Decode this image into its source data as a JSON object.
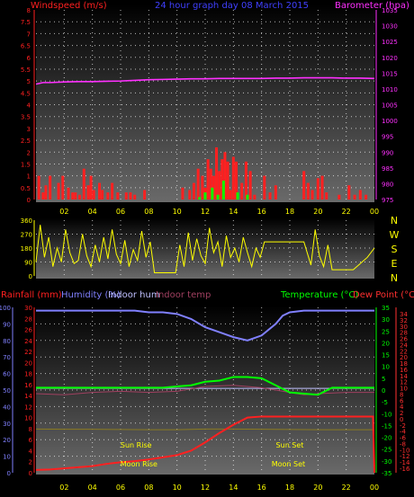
{
  "colors": {
    "wind": "#ff2020",
    "gust": "#00ff00",
    "barometer": "#ff30ff",
    "direction": "#ffff00",
    "rain": "#ff2020",
    "humidity": "#8080ff",
    "indoor_hum": "#c0c0ff",
    "indoor_temp": "#a04060",
    "temperature": "#00ff00",
    "dewpoint": "#ff3030",
    "title": "#4040ff",
    "axis_tick": "#ffff00",
    "sun": "#ffff00",
    "moon": "#ffff00",
    "grid": "#ffffff"
  },
  "chart_data": [
    {
      "type": "line",
      "title": "24 hour graph day  08 March 2015",
      "left_label": "Windspeed (m/s)",
      "right_label": "Barometer (hpa)",
      "y_left_ticks": [
        "0",
        "0.5",
        "1",
        "1.5",
        "2",
        "2.5",
        "3",
        "3.5",
        "4",
        "4.5",
        "5",
        "5.5",
        "6",
        "6.5",
        "7",
        "7.5",
        "8"
      ],
      "y_right_ticks": [
        "975",
        "980",
        "985",
        "990",
        "995",
        "1000",
        "1005",
        "1010",
        "1015",
        "1020",
        "1025",
        "1030",
        "1035"
      ],
      "ylim_left": [
        0,
        8
      ],
      "ylim_right": [
        975,
        1035
      ],
      "x_ticks": [
        "02",
        "04",
        "06",
        "08",
        "10",
        "12",
        "14",
        "16",
        "18",
        "20",
        "22",
        "00"
      ],
      "xlim": [
        0,
        24
      ],
      "grid": true,
      "series": [
        {
          "key": "barometer",
          "axis": "right",
          "x": [
            0,
            0.5,
            1,
            2,
            3,
            4,
            5,
            6,
            7,
            8,
            9,
            10,
            11,
            12,
            13,
            14,
            15,
            16,
            17,
            18,
            19,
            20,
            21,
            22,
            23,
            24
          ],
          "values": [
            1011.5,
            1012.0,
            1012.0,
            1012.2,
            1012.3,
            1012.3,
            1012.4,
            1012.5,
            1012.7,
            1012.9,
            1013.0,
            1013.1,
            1013.2,
            1013.2,
            1013.3,
            1013.3,
            1013.3,
            1013.3,
            1013.4,
            1013.4,
            1013.5,
            1013.5,
            1013.5,
            1013.4,
            1013.4,
            1013.3
          ]
        },
        {
          "key": "wind",
          "axis": "left",
          "style": "bars",
          "x": [
            0.2,
            0.5,
            0.7,
            1.0,
            1.6,
            1.9,
            2.3,
            2.6,
            2.8,
            3.1,
            3.4,
            3.7,
            3.9,
            4.1,
            4.5,
            4.7,
            5.1,
            5.4,
            5.8,
            6.4,
            6.7,
            7.0,
            7.7,
            10.4,
            10.9,
            11.2,
            11.5,
            11.8,
            12.0,
            12.2,
            12.4,
            12.6,
            12.8,
            13.0,
            13.2,
            13.4,
            13.6,
            13.8,
            14.0,
            14.2,
            14.6,
            14.9,
            15.2,
            15.5,
            16.2,
            16.6,
            17.0,
            19.0,
            19.3,
            19.6,
            20.0,
            20.3,
            20.6,
            21.5,
            22.2,
            22.6,
            23.0,
            23.4
          ],
          "values": [
            1.0,
            0.3,
            0.6,
            1.0,
            0.7,
            1.0,
            0.5,
            0.3,
            0.3,
            0.2,
            1.3,
            0.6,
            1.0,
            0.4,
            0.7,
            0.4,
            0.3,
            0.7,
            0.3,
            0.3,
            0.3,
            0.2,
            0.4,
            0.5,
            0.4,
            0.7,
            1.3,
            1.0,
            0.5,
            1.7,
            1.3,
            1.0,
            2.2,
            1.2,
            1.7,
            2.0,
            1.6,
            0.4,
            1.8,
            1.6,
            0.7,
            1.6,
            1.2,
            0.2,
            1.0,
            0.3,
            0.6,
            1.2,
            0.7,
            0.4,
            0.9,
            1.0,
            0.3,
            0.2,
            0.6,
            0.2,
            0.4,
            0.2
          ]
        },
        {
          "key": "gust",
          "axis": "left",
          "style": "bars",
          "x": [
            11.6,
            12.0,
            12.5,
            12.9,
            13.3,
            14.3,
            15.0
          ],
          "values": [
            0.1,
            0.3,
            0.5,
            0.2,
            0.8,
            0.3,
            0.2
          ]
        }
      ]
    },
    {
      "type": "scatter",
      "left_label": "",
      "y_left_ticks": [
        "0",
        "90",
        "180",
        "270",
        "360"
      ],
      "ylim": [
        0,
        360
      ],
      "right_labels": [
        "N",
        "W",
        "S",
        "E",
        "N"
      ],
      "xlim": [
        0,
        24
      ],
      "grid": true,
      "series": [
        {
          "key": "direction",
          "x": [
            0,
            0.3,
            0.6,
            0.9,
            1.2,
            1.5,
            1.8,
            2.1,
            2.4,
            2.7,
            3.0,
            3.3,
            3.6,
            3.9,
            4.2,
            4.5,
            4.8,
            5.1,
            5.4,
            5.7,
            6.0,
            6.3,
            6.6,
            6.9,
            7.2,
            7.5,
            7.8,
            8.1,
            8.4,
            8.7,
            9.0,
            9.3,
            9.6,
            9.9,
            10.2,
            10.5,
            10.8,
            11.1,
            11.4,
            11.7,
            12.0,
            12.3,
            12.6,
            12.9,
            13.2,
            13.5,
            13.8,
            14.1,
            14.4,
            14.7,
            15.0,
            15.3,
            15.6,
            15.9,
            16.2,
            17.0,
            18.0,
            19.0,
            19.5,
            19.8,
            20.1,
            20.4,
            20.7,
            21.0,
            21.5,
            22.0,
            22.5,
            23.0,
            23.5,
            24.0
          ],
          "values": [
            90,
            330,
            120,
            250,
            60,
            180,
            90,
            300,
            150,
            80,
            100,
            270,
            130,
            60,
            200,
            90,
            250,
            110,
            300,
            140,
            80,
            230,
            60,
            170,
            100,
            290,
            120,
            220,
            20,
            20,
            20,
            20,
            20,
            20,
            200,
            60,
            280,
            100,
            240,
            130,
            80,
            310,
            150,
            220,
            60,
            260,
            120,
            180,
            90,
            250,
            150,
            60,
            180,
            120,
            220,
            220,
            220,
            220,
            70,
            300,
            130,
            60,
            200,
            40,
            40,
            40,
            40,
            80,
            120,
            180
          ]
        }
      ]
    },
    {
      "type": "line",
      "legend": [
        "Rainfall (mm)",
        "Humidity (%)",
        "Indoor hum",
        "Indoor temp",
        "Temperature (°C)",
        "Dew Point (°C)"
      ],
      "humidity_ticks": [
        "0",
        "5",
        "10",
        "15",
        "20",
        "25",
        "30",
        "35",
        "40",
        "45",
        "50",
        "55",
        "60",
        "65",
        "70",
        "75",
        "80",
        "85",
        "90",
        "95",
        "100"
      ],
      "rain_ticks": [
        "0",
        "2",
        "4",
        "6",
        "8",
        "10",
        "12",
        "14",
        "16",
        "18",
        "20",
        "22",
        "24",
        "26",
        "28",
        "30"
      ],
      "temp_ticks": [
        "35",
        "30",
        "25",
        "20",
        "15",
        "10",
        "5",
        "0",
        "-5",
        "-10",
        "-15",
        "-20",
        "-25",
        "-30",
        "-35"
      ],
      "dew_ticks": [
        "34",
        "32",
        "30",
        "28",
        "26",
        "24",
        "22",
        "20",
        "18",
        "16",
        "14",
        "12",
        "10",
        "8",
        "6",
        "4",
        "2",
        "0",
        "-2",
        "-4",
        "-6",
        "-8",
        "-10",
        "-12",
        "-14",
        "-16"
      ],
      "ylim_humidity": [
        0,
        100
      ],
      "ylim_temp": [
        -35,
        35
      ],
      "x_ticks": [
        "02",
        "04",
        "06",
        "08",
        "10",
        "12",
        "14",
        "16",
        "18",
        "20",
        "22",
        "00"
      ],
      "xlim": [
        0,
        24
      ],
      "grid": true,
      "events": [
        {
          "label": "Sun Rise",
          "x": 7.1,
          "row": "upper"
        },
        {
          "label": "Sun Set",
          "x": 18.0,
          "row": "upper"
        },
        {
          "label": "Moon Rise",
          "x": 7.3,
          "row": "lower"
        },
        {
          "label": "Moon Set",
          "x": 17.9,
          "row": "lower"
        }
      ],
      "series": [
        {
          "key": "humidity",
          "axis": "humidity",
          "x": [
            0,
            1,
            2,
            3,
            4,
            5,
            6,
            7,
            8,
            9,
            10,
            11,
            12,
            13,
            14,
            15,
            16,
            17,
            17.5,
            18,
            19,
            20,
            21,
            22,
            23,
            24
          ],
          "values": [
            98,
            98,
            98,
            98,
            98,
            98,
            98,
            98,
            97,
            97,
            96,
            93,
            88,
            85,
            82,
            80,
            83,
            90,
            95,
            97,
            98,
            98,
            98,
            98,
            98,
            98
          ]
        },
        {
          "key": "indoor_hum",
          "axis": "humidity",
          "x": [
            0,
            4,
            8,
            12,
            16,
            20,
            24
          ],
          "values": [
            51,
            51,
            51,
            51,
            51,
            51,
            51
          ]
        },
        {
          "key": "indoor_temp",
          "axis": "temp",
          "x": [
            0,
            2,
            4,
            6,
            8,
            10,
            12,
            14,
            16,
            18,
            19,
            20,
            22,
            24
          ],
          "values": [
            -1.5,
            -2.0,
            -1.0,
            -0.5,
            -1.0,
            -0.5,
            1.5,
            2.0,
            1.0,
            -1.0,
            -2.0,
            -1.5,
            -1.0,
            -1.0
          ]
        },
        {
          "key": "temperature",
          "axis": "temp",
          "x": [
            0,
            2,
            4,
            6,
            8,
            9,
            10,
            11,
            12,
            13,
            14,
            15,
            16,
            17,
            18,
            19,
            20,
            21,
            22,
            24
          ],
          "values": [
            1.0,
            1.0,
            1.0,
            1.0,
            1.0,
            1.0,
            1.5,
            2.0,
            3.5,
            4.0,
            5.5,
            5.5,
            5.0,
            2.0,
            -1.0,
            -1.5,
            -2.0,
            1.0,
            1.0,
            1.0
          ]
        },
        {
          "key": "dewpoint",
          "axis": "temp",
          "x": [
            0,
            2,
            4,
            6,
            8,
            10,
            12,
            14,
            16,
            18,
            20,
            22,
            24
          ],
          "values": [
            -16.5,
            -16.6,
            -16.6,
            -16.7,
            -16.8,
            -16.8,
            -16.5,
            -16.5,
            -16.6,
            -16.7,
            -16.8,
            -16.8,
            -16.8
          ]
        },
        {
          "key": "rain",
          "axis": "rain",
          "x": [
            0,
            1,
            2,
            3,
            4,
            5,
            6,
            7,
            8,
            9,
            10,
            11,
            12,
            13,
            14,
            15,
            16,
            17,
            18,
            19,
            20,
            21,
            22,
            23,
            23.9,
            24
          ],
          "values": [
            0.5,
            0.6,
            0.8,
            1.0,
            1.2,
            1.6,
            1.9,
            2.1,
            2.4,
            2.8,
            3.2,
            4.0,
            5.5,
            7.2,
            8.7,
            10.0,
            10.2,
            10.2,
            10.2,
            10.2,
            10.2,
            10.2,
            10.2,
            10.2,
            10.2,
            0
          ]
        }
      ]
    }
  ]
}
